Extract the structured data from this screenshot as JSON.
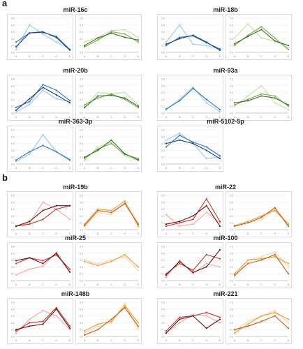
{
  "figure": {
    "sections": [
      {
        "label": "a"
      },
      {
        "label": "b"
      }
    ]
  },
  "colors": {
    "blue": [
      "#9cc6ea",
      "#2f73b9",
      "#193f73"
    ],
    "green": [
      "#c4dda8",
      "#77a94a",
      "#3b6c2c"
    ],
    "red": [
      "#f0a8a4",
      "#c2352e",
      "#5a1615"
    ],
    "orange": [
      "#f8d3a6",
      "#ec9a3b",
      "#b2601a"
    ]
  },
  "chart_data": [
    {
      "type": "line",
      "title": "miR-16c",
      "palette": "blue",
      "categories": [
        "A",
        "B",
        "C",
        "D",
        "E"
      ],
      "ylim": [
        0,
        0.6
      ],
      "series": [
        {
          "values": [
            0.05,
            0.48,
            0.32,
            0.18,
            0.06
          ]
        },
        {
          "values": [
            0.18,
            0.34,
            0.35,
            0.28,
            0.05
          ]
        },
        {
          "values": [
            0.1,
            0.34,
            0.36,
            0.26,
            0.04
          ]
        }
      ]
    },
    {
      "type": "line",
      "title": "",
      "palette": "green",
      "categories": [
        "A",
        "B",
        "C",
        "D",
        "E"
      ],
      "ylim": [
        0,
        0.5
      ],
      "series": [
        {
          "values": [
            0.15,
            0.22,
            0.32,
            0.33,
            0.22
          ]
        },
        {
          "values": [
            0.08,
            0.18,
            0.3,
            0.27,
            0.15
          ]
        },
        {
          "values": [
            0.1,
            0.21,
            0.28,
            0.22,
            0.18
          ]
        }
      ]
    },
    {
      "type": "line",
      "title": "miR-18b",
      "palette": "blue",
      "categories": [
        "A",
        "B",
        "C",
        "D",
        "E"
      ],
      "ylim": [
        0,
        0.5
      ],
      "series": [
        {
          "values": [
            0.15,
            0.4,
            0.12,
            0.1,
            0.05
          ]
        },
        {
          "values": [
            0.1,
            0.22,
            0.24,
            0.14,
            0.05
          ]
        },
        {
          "values": [
            0.12,
            0.2,
            0.25,
            0.15,
            0.03
          ]
        }
      ]
    },
    {
      "type": "line",
      "title": "",
      "palette": "green",
      "categories": [
        "A",
        "B",
        "C",
        "D",
        "E"
      ],
      "ylim": [
        0,
        0.6
      ],
      "series": [
        {
          "values": [
            0.25,
            0.5,
            0.25,
            0.2,
            0.08
          ]
        },
        {
          "values": [
            0.12,
            0.3,
            0.45,
            0.25,
            0.05
          ]
        },
        {
          "values": [
            0.15,
            0.28,
            0.4,
            0.2,
            0.12
          ]
        }
      ]
    },
    {
      "type": "line",
      "title": "miR-20b",
      "palette": "blue",
      "categories": [
        "A",
        "B",
        "C",
        "D",
        "E"
      ],
      "ylim": [
        0,
        0.6
      ],
      "series": [
        {
          "values": [
            0.02,
            0.15,
            0.4,
            0.25,
            0.2
          ]
        },
        {
          "values": [
            0.1,
            0.2,
            0.5,
            0.4,
            0.22
          ]
        },
        {
          "values": [
            0.05,
            0.25,
            0.45,
            0.32,
            0.18
          ]
        }
      ]
    },
    {
      "type": "line",
      "title": "",
      "palette": "green",
      "categories": [
        "A",
        "B",
        "C",
        "D",
        "E"
      ],
      "ylim": [
        0,
        0.5
      ],
      "series": [
        {
          "values": [
            0.1,
            0.3,
            0.28,
            0.3,
            0.12
          ]
        },
        {
          "values": [
            0.12,
            0.22,
            0.28,
            0.2,
            0.08
          ]
        },
        {
          "values": [
            0.08,
            0.25,
            0.26,
            0.22,
            0.1
          ]
        }
      ]
    },
    {
      "type": "line",
      "title": "miR-93a",
      "palette": "blue",
      "categories": [
        "A",
        "B",
        "C",
        "D",
        "E"
      ],
      "ylim": [
        0,
        0.5
      ],
      "series": [
        {
          "values": [
            0.05,
            0.2,
            0.38,
            0.15,
            0.02
          ]
        },
        {
          "values": [
            0.06,
            0.18,
            0.36,
            0.2,
            0.05
          ]
        }
      ]
    },
    {
      "type": "line",
      "title": "",
      "palette": "green",
      "categories": [
        "A",
        "B",
        "C",
        "D",
        "E"
      ],
      "ylim": [
        0,
        0.5
      ],
      "series": [
        {
          "values": [
            0.1,
            0.25,
            0.4,
            0.15,
            0.05
          ]
        },
        {
          "values": [
            0.12,
            0.2,
            0.28,
            0.25,
            0.1
          ]
        },
        {
          "values": [
            0.15,
            0.18,
            0.25,
            0.22,
            0.12
          ]
        }
      ]
    },
    {
      "type": "line",
      "title": "miR-363-3p",
      "palette": "blue",
      "categories": [
        "A",
        "B",
        "C",
        "D",
        "E"
      ],
      "ylim": [
        0,
        0.7
      ],
      "series": [
        {
          "values": [
            0.05,
            0.2,
            0.6,
            0.25,
            0.1
          ]
        },
        {
          "values": [
            0.08,
            0.25,
            0.38,
            0.25,
            0.08
          ]
        }
      ]
    },
    {
      "type": "line",
      "title": "",
      "palette": "green",
      "categories": [
        "A",
        "B",
        "C",
        "D",
        "E"
      ],
      "ylim": [
        0,
        0.5
      ],
      "series": [
        {
          "values": [
            0.05,
            0.25,
            0.32,
            0.12,
            0.05
          ]
        },
        {
          "values": [
            0.08,
            0.22,
            0.3,
            0.14,
            0.08
          ]
        },
        {
          "values": [
            0.1,
            0.2,
            0.35,
            0.15,
            0.06
          ]
        }
      ]
    },
    {
      "type": "line",
      "title": "miR-5102-5p",
      "palette": "blue",
      "categories": [
        "A",
        "B",
        "C",
        "D",
        "E"
      ],
      "ylim": [
        0,
        0.5
      ],
      "series": [
        {
          "values": [
            0.35,
            0.45,
            0.3,
            0.08,
            0.1
          ]
        },
        {
          "values": [
            0.25,
            0.42,
            0.32,
            0.25,
            0.12
          ]
        },
        {
          "values": [
            0.3,
            0.35,
            0.3,
            0.2,
            0.08
          ]
        }
      ]
    },
    {
      "type": "line",
      "title": "miR-19b",
      "palette": "red",
      "categories": [
        "A",
        "B",
        "C",
        "D",
        "E"
      ],
      "ylim": [
        0,
        0.5
      ],
      "series": [
        {
          "values": [
            0.05,
            0.1,
            0.4,
            0.3,
            0.15
          ]
        },
        {
          "values": [
            0.05,
            0.08,
            0.15,
            0.3,
            0.35
          ]
        },
        {
          "values": [
            0.05,
            0.12,
            0.28,
            0.35,
            0.35
          ]
        }
      ]
    },
    {
      "type": "line",
      "title": "",
      "palette": "orange",
      "categories": [
        "A",
        "B",
        "C",
        "D",
        "E"
      ],
      "ylim": [
        0,
        0.5
      ],
      "series": [
        {
          "values": [
            0.05,
            0.25,
            0.22,
            0.4,
            0.1
          ]
        },
        {
          "values": [
            0.08,
            0.3,
            0.28,
            0.42,
            0.05
          ]
        },
        {
          "values": [
            0.06,
            0.28,
            0.25,
            0.38,
            0.08
          ]
        }
      ]
    },
    {
      "type": "line",
      "title": "miR-22",
      "palette": "red",
      "categories": [
        "A",
        "B",
        "C",
        "D",
        "E"
      ],
      "ylim": [
        0,
        0.5
      ],
      "series": [
        {
          "values": [
            0.22,
            0.05,
            0.08,
            0.25,
            0.1
          ]
        },
        {
          "values": [
            0.05,
            0.1,
            0.15,
            0.45,
            0.12
          ]
        },
        {
          "values": [
            0.08,
            0.12,
            0.2,
            0.35,
            0.05
          ]
        }
      ]
    },
    {
      "type": "line",
      "title": "",
      "palette": "orange",
      "categories": [
        "A",
        "B",
        "C",
        "D",
        "E"
      ],
      "ylim": [
        0,
        0.5
      ],
      "series": [
        {
          "values": [
            0.05,
            0.1,
            0.15,
            0.3,
            0.1
          ]
        },
        {
          "values": [
            0.06,
            0.12,
            0.2,
            0.28,
            0.08
          ]
        },
        {
          "values": [
            0.05,
            0.1,
            0.18,
            0.32,
            0.05
          ]
        }
      ]
    },
    {
      "type": "line",
      "title": "miR-25",
      "palette": "red",
      "categories": [
        "A",
        "B",
        "C",
        "D",
        "E"
      ],
      "ylim": [
        0,
        0.6
      ],
      "series": [
        {
          "values": [
            0.1,
            0.2,
            0.25,
            0.5,
            0.15
          ]
        },
        {
          "values": [
            0.3,
            0.4,
            0.35,
            0.45,
            0.2
          ]
        },
        {
          "values": [
            0.35,
            0.4,
            0.3,
            0.48,
            0.15
          ]
        }
      ]
    },
    {
      "type": "line",
      "title": "",
      "palette": "orange",
      "categories": [
        "A",
        "B",
        "C",
        "D",
        "E"
      ],
      "ylim": [
        0,
        0.5
      ],
      "series": [
        {
          "values": [
            0.3,
            0.25,
            0.3,
            0.35,
            0.15
          ]
        },
        {
          "values": [
            0.28,
            0.22,
            0.28,
            0.38,
            0.2
          ]
        }
      ]
    },
    {
      "type": "line",
      "title": "miR-100",
      "palette": "red",
      "categories": [
        "A",
        "B",
        "C",
        "D",
        "E"
      ],
      "ylim": [
        0,
        0.5
      ],
      "series": [
        {
          "values": [
            0.05,
            0.3,
            0.1,
            0.25,
            0.2
          ]
        },
        {
          "values": [
            0.1,
            0.25,
            0.15,
            0.38,
            0.32
          ]
        },
        {
          "values": [
            0.08,
            0.28,
            0.12,
            0.2,
            0.45
          ]
        }
      ]
    },
    {
      "type": "line",
      "title": "",
      "palette": "orange",
      "categories": [
        "A",
        "B",
        "C",
        "D",
        "E"
      ],
      "ylim": [
        0,
        0.5
      ],
      "series": [
        {
          "values": [
            0.05,
            0.3,
            0.35,
            0.42,
            0.2
          ]
        },
        {
          "values": [
            0.1,
            0.3,
            0.32,
            0.35,
            0.25
          ]
        },
        {
          "values": [
            0.08,
            0.25,
            0.3,
            0.38,
            0.1
          ]
        }
      ]
    },
    {
      "type": "line",
      "title": "miR-148b",
      "palette": "red",
      "categories": [
        "A",
        "B",
        "C",
        "D",
        "E"
      ],
      "ylim": [
        0,
        0.5
      ],
      "series": [
        {
          "values": [
            0.05,
            0.25,
            0.38,
            0.3,
            0.1
          ]
        },
        {
          "values": [
            0.08,
            0.2,
            0.22,
            0.42,
            0.15
          ]
        },
        {
          "values": [
            0.1,
            0.15,
            0.18,
            0.4,
            0.12
          ]
        }
      ]
    },
    {
      "type": "line",
      "title": "",
      "palette": "orange",
      "categories": [
        "A",
        "B",
        "C",
        "D",
        "E"
      ],
      "ylim": [
        0,
        0.5
      ],
      "series": [
        {
          "values": [
            0.05,
            0.15,
            0.2,
            0.48,
            0.1
          ]
        },
        {
          "values": [
            0.08,
            0.18,
            0.22,
            0.45,
            0.2
          ]
        },
        {
          "values": [
            0.02,
            0.1,
            0.25,
            0.42,
            0.15
          ]
        }
      ]
    },
    {
      "type": "line",
      "title": "miR-221",
      "palette": "red",
      "categories": [
        "A",
        "B",
        "C",
        "D",
        "E"
      ],
      "ylim": [
        0,
        0.5
      ],
      "series": [
        {
          "values": [
            0.05,
            0.2,
            0.32,
            0.3,
            0.2
          ]
        },
        {
          "values": [
            0.08,
            0.28,
            0.3,
            0.35,
            0.28
          ]
        },
        {
          "values": [
            0.05,
            0.25,
            0.3,
            0.12,
            0.25
          ]
        }
      ]
    },
    {
      "type": "line",
      "title": "",
      "palette": "orange",
      "categories": [
        "A",
        "B",
        "C",
        "D",
        "E"
      ],
      "ylim": [
        0,
        0.5
      ],
      "series": [
        {
          "values": [
            0.08,
            0.22,
            0.3,
            0.38,
            0.2
          ]
        },
        {
          "values": [
            0.05,
            0.18,
            0.3,
            0.35,
            0.25
          ]
        },
        {
          "values": [
            0.1,
            0.15,
            0.22,
            0.3,
            0.12
          ]
        }
      ]
    }
  ]
}
